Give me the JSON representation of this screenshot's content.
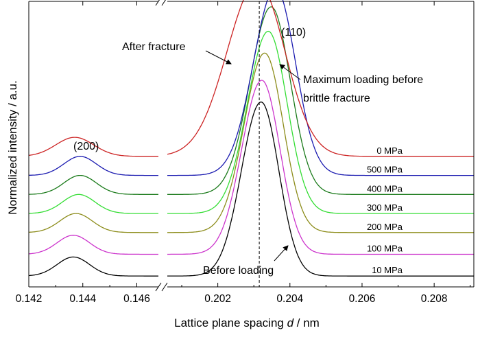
{
  "chart_data": {
    "type": "line",
    "xlabel_prefix": "Lattice plane spacing ",
    "xlabel_var": "d",
    "xlabel_suffix": " / nm",
    "ylabel": "Normalized intensity / a.u.",
    "broken_x_axis": true,
    "x_segments": [
      {
        "xlim": [
          0.142,
          0.1468
        ],
        "ticks": [
          "0.142",
          "0.144",
          "0.146"
        ],
        "tick_values": [
          0.142,
          0.144,
          0.146
        ]
      },
      {
        "xlim": [
          0.2006,
          0.2091
        ],
        "ticks": [
          "0.202",
          "0.204",
          "0.206",
          "0.208"
        ],
        "tick_values": [
          0.202,
          0.204,
          0.206,
          0.208
        ]
      }
    ],
    "dashed_reference_x": 0.20315,
    "series": [
      {
        "name": "10 MPa",
        "color": "#000000",
        "baseline": 0.04,
        "height200": 0.07,
        "center200": 0.14365,
        "width200": 0.0006,
        "height110": 0.64,
        "center110": 0.2032,
        "sigma110": 0.00052
      },
      {
        "name": "100 MPa",
        "color": "#cc33cc",
        "baseline": 0.12,
        "height200": 0.07,
        "center200": 0.14365,
        "width200": 0.0006,
        "height110": 0.64,
        "center110": 0.20322,
        "sigma110": 0.00053
      },
      {
        "name": "200 MPa",
        "color": "#8c8c1a",
        "baseline": 0.2,
        "height200": 0.07,
        "center200": 0.14375,
        "width200": 0.0006,
        "height110": 0.66,
        "center110": 0.2033,
        "sigma110": 0.00054
      },
      {
        "name": "300 MPa",
        "color": "#33dd33",
        "baseline": 0.27,
        "height200": 0.07,
        "center200": 0.14385,
        "width200": 0.0006,
        "height110": 0.67,
        "center110": 0.2034,
        "sigma110": 0.00055
      },
      {
        "name": "400 MPa",
        "color": "#1a7a1a",
        "baseline": 0.34,
        "height200": 0.07,
        "center200": 0.1439,
        "width200": 0.0006,
        "height110": 0.69,
        "center110": 0.20348,
        "sigma110": 0.00056
      },
      {
        "name": "500 MPa",
        "color": "#1a1ab0",
        "baseline": 0.41,
        "height200": 0.07,
        "center200": 0.1439,
        "width200": 0.0006,
        "height110": 0.69,
        "center110": 0.2036,
        "sigma110": 0.00058
      },
      {
        "name": "0 MPa",
        "color": "#cc2222",
        "baseline": 0.48,
        "height200": 0.07,
        "center200": 0.1437,
        "width200": 0.0007,
        "height110": 0.64,
        "center110": 0.2031,
        "sigma110": 0.0008
      }
    ],
    "annotations": {
      "peak200": "(200)",
      "peak110": "(110)",
      "after_fracture": "After fracture",
      "max_loading_line1": "Maximum loading before",
      "max_loading_line2": "brittle fracture",
      "before_loading": "Before loading"
    }
  }
}
